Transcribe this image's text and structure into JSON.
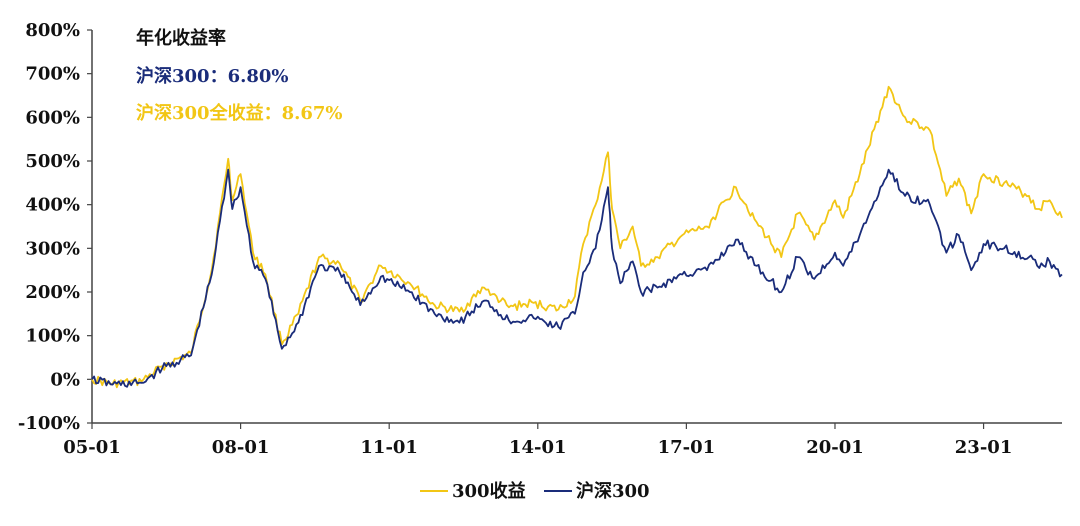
{
  "chart_data": {
    "type": "line",
    "title": "",
    "xlabel": "",
    "ylabel": "",
    "ylim": [
      -100,
      800
    ],
    "x_range": [
      "2005-01",
      "2024-08"
    ],
    "yticks": [
      -100,
      0,
      100,
      200,
      300,
      400,
      500,
      600,
      700,
      800
    ],
    "ytick_labels": [
      "-100%",
      "0%",
      "100%",
      "200%",
      "300%",
      "400%",
      "500%",
      "600%",
      "700%",
      "800%"
    ],
    "xticks": [
      "2005-01",
      "2008-01",
      "2011-01",
      "2014-01",
      "2017-01",
      "2020-01",
      "2023-01"
    ],
    "xtick_labels": [
      "05-01",
      "08-01",
      "11-01",
      "14-01",
      "17-01",
      "20-01",
      "23-01"
    ],
    "grid": false,
    "legend_position": "bottom-center",
    "annotations": {
      "title": "年化收益率",
      "line1": "沪深300：6.80%",
      "line2": "沪深300全收益：8.67%"
    },
    "series": [
      {
        "name": "300收益",
        "color": "#F2C615",
        "x": [
          "2005-01",
          "2005-06",
          "2006-01",
          "2006-06",
          "2007-01",
          "2007-06",
          "2007-10",
          "2007-11",
          "2008-01",
          "2008-04",
          "2008-07",
          "2008-11",
          "2009-03",
          "2009-08",
          "2010-01",
          "2010-06",
          "2010-11",
          "2011-06",
          "2011-12",
          "2012-06",
          "2012-12",
          "2013-02",
          "2013-06",
          "2013-12",
          "2014-06",
          "2014-10",
          "2014-12",
          "2015-03",
          "2015-06",
          "2015-07",
          "2015-09",
          "2015-12",
          "2016-02",
          "2016-06",
          "2016-12",
          "2017-06",
          "2018-01",
          "2018-06",
          "2018-12",
          "2019-04",
          "2019-08",
          "2020-01",
          "2020-03",
          "2020-07",
          "2021-02",
          "2021-06",
          "2021-12",
          "2022-04",
          "2022-07",
          "2022-10",
          "2023-01",
          "2023-06",
          "2023-12",
          "2024-02",
          "2024-05",
          "2024-08"
        ],
        "values": [
          0,
          -10,
          -5,
          30,
          60,
          250,
          505,
          410,
          470,
          290,
          240,
          80,
          150,
          280,
          265,
          180,
          260,
          220,
          170,
          155,
          210,
          195,
          165,
          175,
          160,
          190,
          310,
          400,
          520,
          390,
          300,
          350,
          260,
          280,
          330,
          350,
          440,
          360,
          280,
          380,
          320,
          410,
          370,
          470,
          670,
          600,
          570,
          420,
          460,
          380,
          470,
          450,
          420,
          390,
          410,
          370
        ]
      },
      {
        "name": "沪深300",
        "color": "#1A2C7A",
        "x": [
          "2005-01",
          "2005-06",
          "2006-01",
          "2006-06",
          "2007-01",
          "2007-06",
          "2007-10",
          "2007-11",
          "2008-01",
          "2008-04",
          "2008-07",
          "2008-11",
          "2009-03",
          "2009-08",
          "2010-01",
          "2010-06",
          "2010-11",
          "2011-06",
          "2011-12",
          "2012-06",
          "2012-12",
          "2013-02",
          "2013-06",
          "2013-12",
          "2014-06",
          "2014-10",
          "2014-12",
          "2015-03",
          "2015-06",
          "2015-07",
          "2015-09",
          "2015-12",
          "2016-02",
          "2016-06",
          "2016-12",
          "2017-06",
          "2018-01",
          "2018-06",
          "2018-12",
          "2019-04",
          "2019-08",
          "2020-01",
          "2020-03",
          "2020-07",
          "2021-02",
          "2021-06",
          "2021-12",
          "2022-04",
          "2022-07",
          "2022-10",
          "2023-01",
          "2023-06",
          "2023-12",
          "2024-02",
          "2024-05",
          "2024-08"
        ],
        "values": [
          0,
          -12,
          -8,
          25,
          55,
          240,
          480,
          390,
          440,
          270,
          230,
          70,
          130,
          260,
          245,
          170,
          235,
          200,
          150,
          130,
          180,
          165,
          135,
          140,
          120,
          150,
          245,
          300,
          440,
          300,
          220,
          270,
          200,
          210,
          240,
          250,
          320,
          260,
          200,
          280,
          230,
          290,
          260,
          330,
          480,
          420,
          400,
          290,
          330,
          250,
          310,
          300,
          280,
          260,
          270,
          240
        ]
      }
    ]
  }
}
